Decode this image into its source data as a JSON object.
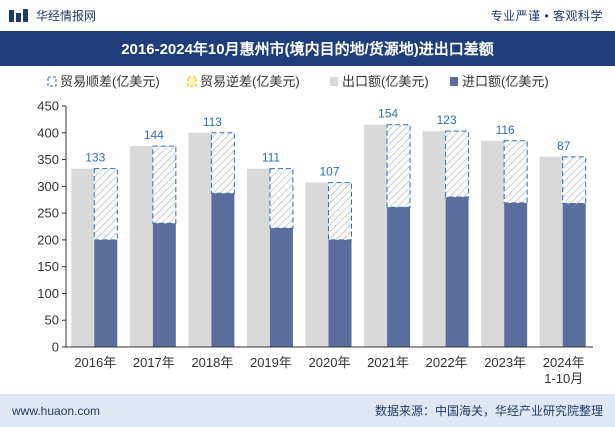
{
  "header": {
    "brand": "华经情报网",
    "slogan": "专业严谨 • 客观科学"
  },
  "footer": {
    "website": "www.huaon.com",
    "source": "数据来源：中国海关，华经产业研究院整理"
  },
  "colors": {
    "header_bar": "#1f3d7a",
    "export": "#d9d9d9",
    "import": "#5a6d9c",
    "surplus_border": "#2e6fb5",
    "label": "#2e6fb5"
  },
  "chart_data": {
    "type": "bar",
    "title": "2016-2024年10月惠州市(境内目的地/货源地)进出口差额",
    "categories": [
      "2016年",
      "2017年",
      "2018年",
      "2019年",
      "2020年",
      "2021年",
      "2022年",
      "2023年",
      "2024年\n1-10月"
    ],
    "series": [
      {
        "name": "贸易顺差(亿美元)",
        "values": [
          133,
          144,
          113,
          111,
          107,
          154,
          123,
          116,
          87
        ]
      },
      {
        "name": "贸易逆差(亿美元)",
        "values": [
          0,
          0,
          0,
          0,
          0,
          0,
          0,
          0,
          0
        ]
      },
      {
        "name": "出口额(亿美元)",
        "values": [
          333,
          375,
          400,
          333,
          307,
          415,
          403,
          385,
          355
        ]
      },
      {
        "name": "进口额(亿美元)",
        "values": [
          200,
          231,
          287,
          222,
          200,
          261,
          280,
          269,
          268
        ]
      }
    ],
    "ylim": [
      0,
      450
    ],
    "yticks": [
      0,
      50,
      100,
      150,
      200,
      250,
      300,
      350,
      400,
      450
    ],
    "legend_position": "top-left",
    "grid": false
  }
}
